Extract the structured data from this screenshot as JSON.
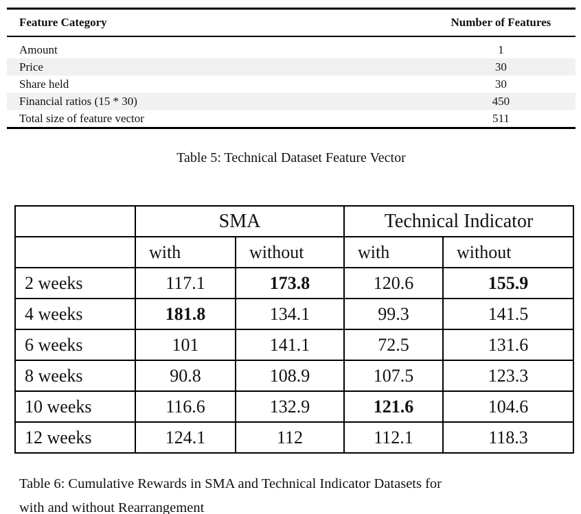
{
  "colors": {
    "background": "#ffffff",
    "text": "#111111",
    "table5_stripe": "#f1f1f1",
    "rule": "#000000"
  },
  "table5": {
    "columns": {
      "category": "Feature Category",
      "count": "Number of Features"
    },
    "rows": [
      {
        "category": "Amount",
        "count": "1"
      },
      {
        "category": "Price",
        "count": "30"
      },
      {
        "category": "Share held",
        "count": "30"
      },
      {
        "category": "Financial ratios (15 * 30)",
        "count": "450"
      },
      {
        "category": "Total size of feature vector",
        "count": "511"
      }
    ],
    "caption": "Table 5: Technical Dataset Feature Vector"
  },
  "table6": {
    "group_headers": [
      "SMA",
      "Technical Indicator"
    ],
    "sub_headers": [
      "with",
      "without",
      "with",
      "without"
    ],
    "rows": [
      {
        "label": "2 weeks",
        "values": [
          "117.1",
          "173.8",
          "120.6",
          "155.9"
        ],
        "bold": [
          false,
          true,
          false,
          true
        ]
      },
      {
        "label": "4 weeks",
        "values": [
          "181.8",
          "134.1",
          "99.3",
          "141.5"
        ],
        "bold": [
          true,
          false,
          false,
          false
        ]
      },
      {
        "label": "6 weeks",
        "values": [
          "101",
          "141.1",
          "72.5",
          "131.6"
        ],
        "bold": [
          false,
          false,
          false,
          false
        ]
      },
      {
        "label": "8 weeks",
        "values": [
          "90.8",
          "108.9",
          "107.5",
          "123.3"
        ],
        "bold": [
          false,
          false,
          false,
          false
        ]
      },
      {
        "label": "10 weeks",
        "values": [
          "116.6",
          "132.9",
          "121.6",
          "104.6"
        ],
        "bold": [
          false,
          false,
          true,
          false
        ]
      },
      {
        "label": "12 weeks",
        "values": [
          "124.1",
          "112",
          "112.1",
          "118.3"
        ],
        "bold": [
          false,
          false,
          false,
          false
        ]
      }
    ],
    "caption_line1": "Table 6: Cumulative Rewards in SMA and Technical Indicator Datasets for",
    "caption_line2": "with and without Rearrangement"
  }
}
